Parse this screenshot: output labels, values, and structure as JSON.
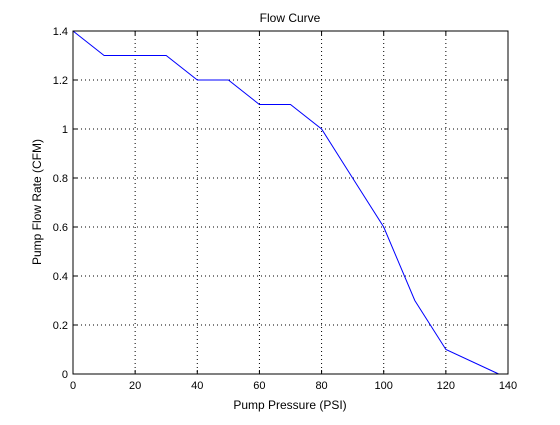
{
  "chart_data": {
    "type": "line",
    "title": "Flow Curve",
    "xlabel": "Pump Pressure (PSI)",
    "ylabel": "Pump Flow Rate (CFM)",
    "xlim": [
      0,
      140
    ],
    "ylim": [
      0,
      1.4
    ],
    "grid": true,
    "x_ticks": [
      "0",
      "20",
      "40",
      "60",
      "80",
      "100",
      "120",
      "140"
    ],
    "y_ticks": [
      "0",
      "0.2",
      "0.4",
      "0.6",
      "0.8",
      "1",
      "1.2",
      "1.4"
    ],
    "series": [
      {
        "color": "#0000ff",
        "x": [
          0,
          10,
          20,
          30,
          40,
          50,
          60,
          70,
          80,
          90,
          100,
          110,
          120,
          137
        ],
        "y": [
          1.4,
          1.3,
          1.3,
          1.3,
          1.2,
          1.2,
          1.1,
          1.1,
          1.0,
          0.8,
          0.6,
          0.3,
          0.1,
          0.0
        ]
      }
    ]
  }
}
